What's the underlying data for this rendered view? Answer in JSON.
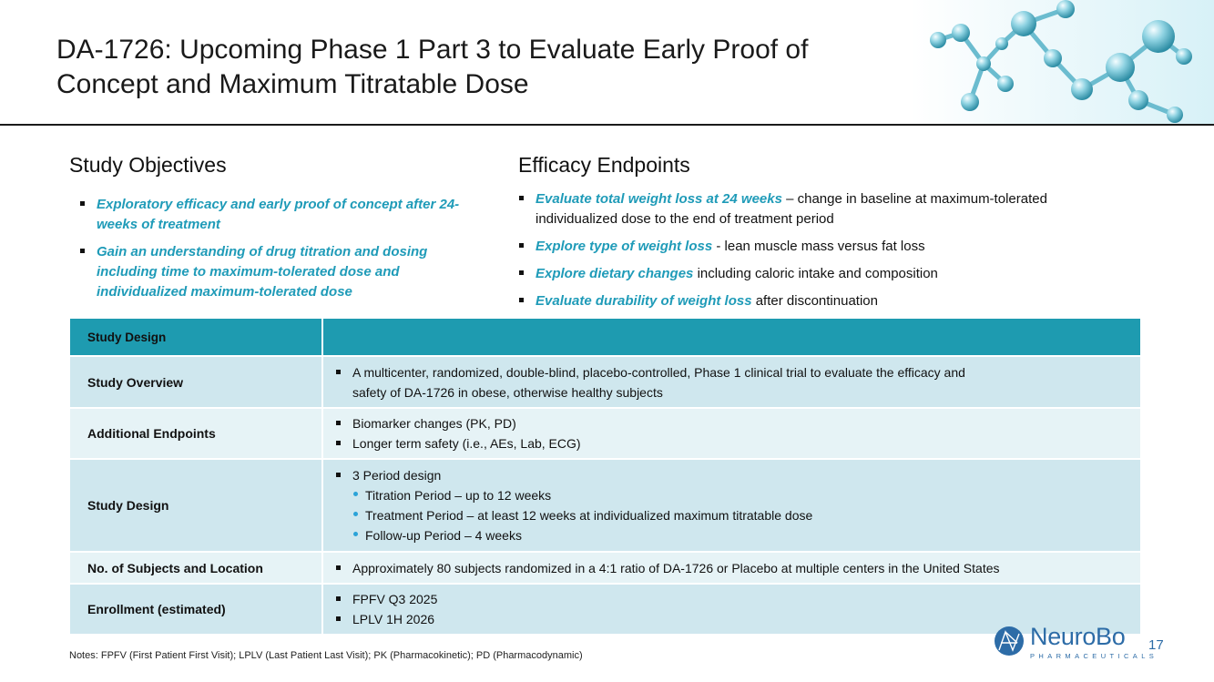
{
  "title": "DA-1726: Upcoming Phase 1 Part 3 to Evaluate Early Proof of Concept and Maximum Titratable Dose",
  "objectives": {
    "heading": "Study Objectives",
    "items": [
      "Exploratory efficacy and early proof of concept after 24-weeks of treatment",
      "Gain an understanding of drug titration and dosing including time to maximum-tolerated dose and individualized maximum-tolerated dose"
    ]
  },
  "efficacy": {
    "heading": "Efficacy Endpoints",
    "items": [
      {
        "em": "Evaluate total weight loss at 24 weeks",
        "rest": " – change in baseline at maximum-tolerated individualized dose to the end of treatment period"
      },
      {
        "em": "Explore type of weight loss",
        "rest": " - lean muscle mass versus fat loss"
      },
      {
        "em": "Explore dietary changes",
        "rest": " including caloric intake and composition"
      },
      {
        "em": "Evaluate durability of weight loss",
        "rest": " after discontinuation"
      }
    ]
  },
  "table": {
    "header": "Study Design",
    "rows": {
      "overview": {
        "label": "Study Overview",
        "bullet": "A multicenter, randomized, double-blind, placebo-controlled, Phase 1 clinical trial to evaluate the efficacy and safety of DA-1726 in obese, otherwise healthy subjects"
      },
      "endpoints": {
        "label": "Additional Endpoints",
        "bullets": [
          "Biomarker changes (PK, PD)",
          "Longer term safety (i.e., AEs, Lab, ECG)"
        ]
      },
      "design": {
        "label": "Study Design",
        "bullet": "3 Period design",
        "subs": [
          "Titration Period – up to 12 weeks",
          "Treatment Period – at least 12 weeks at individualized maximum titratable dose",
          "Follow-up Period – 4 weeks"
        ]
      },
      "subjects": {
        "label": "No. of Subjects and Location",
        "bullet": "Approximately 80 subjects randomized in a 4:1 ratio of DA-1726 or Placebo at multiple centers in the United States"
      },
      "enrollment": {
        "label": "Enrollment (estimated)",
        "bullets": [
          "FPFV Q3 2025",
          "LPLV 1H 2026"
        ]
      }
    }
  },
  "notes": "Notes: FPFV (First Patient First Visit); LPLV  (Last Patient Last Visit); PK (Pharmacokinetic); PD (Pharmacodynamic)",
  "logo": {
    "word": "NeuroBo",
    "sub": "PHARMACEUTICALS",
    "icon": "neurobo-logo-icon"
  },
  "page_number": "17",
  "colors": {
    "accent": "#1f9bb8",
    "table_header": "#1e9bb0",
    "row_dark": "#cfe7ee",
    "row_light": "#e6f3f6",
    "logo": "#2d6ca7"
  }
}
